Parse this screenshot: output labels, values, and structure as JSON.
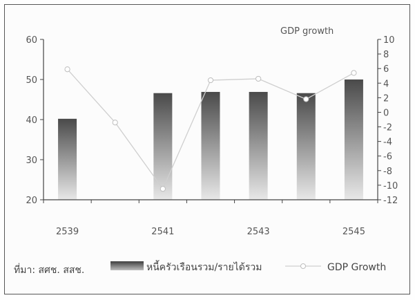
{
  "chart_data": {
    "type": "bar+line",
    "x": [
      "2539",
      "2540",
      "2541",
      "2542",
      "2543",
      "2544",
      "2545"
    ],
    "x_tick_labels": [
      "2539",
      "2541",
      "2543",
      "2545"
    ],
    "bar_series": {
      "name": "หนี้ครัวเรือนรวม/รายได้รวม",
      "values": [
        40.2,
        null,
        46.6,
        46.9,
        46.9,
        46.6,
        50.0
      ],
      "color_top": "#4a4a4a",
      "color_bottom": "#e8e8e8"
    },
    "line_series": {
      "name": "GDP Growth",
      "values": [
        5.9,
        -1.4,
        -10.5,
        4.4,
        4.6,
        1.8,
        5.4
      ],
      "color": "#cfcfcf"
    },
    "y_left": {
      "min": 20,
      "max": 60,
      "ticks": [
        20,
        30,
        40,
        50,
        60
      ]
    },
    "y_right": {
      "min": -12,
      "max": 10,
      "ticks": [
        10,
        8,
        6,
        4,
        2,
        0,
        -2,
        -4,
        -6,
        -8,
        -10,
        -12
      ]
    },
    "right_axis_title": "GDP growth",
    "source_note": "ที่มา: สศช. สสช.",
    "grid": false
  }
}
